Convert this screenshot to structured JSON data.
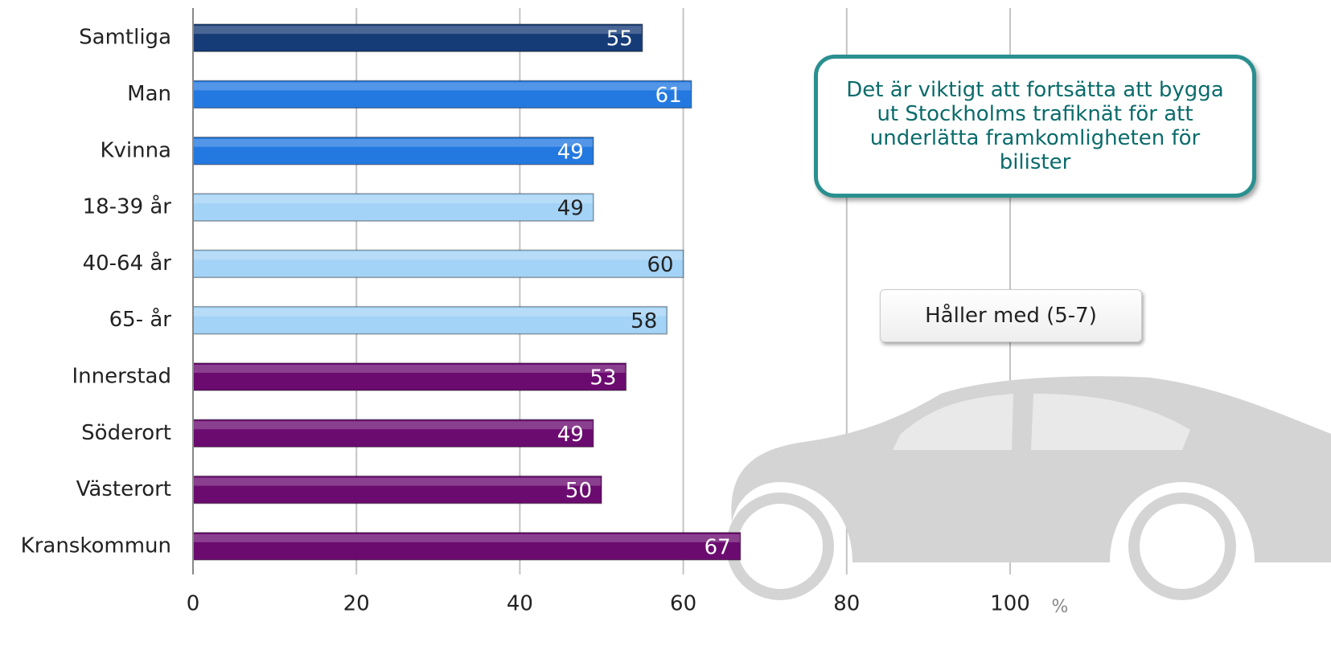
{
  "chart_data": {
    "type": "bar",
    "orientation": "horizontal",
    "categories": [
      "Samtliga",
      "Man",
      "Kvinna",
      "18-39 år",
      "40-64 år",
      "65- år",
      "Innerstad",
      "Söderort",
      "Västerort",
      "Kranskommun"
    ],
    "series": [
      {
        "name": "Håller med (5-7)",
        "colors": [
          "#163c78",
          "#2379e0",
          "#2379e0",
          "#a3d3f6",
          "#a3d3f6",
          "#a3d3f6",
          "#6b0b70",
          "#6b0b70",
          "#6b0b70",
          "#6b0b70"
        ],
        "values": [
          55,
          61,
          49,
          49,
          60,
          58,
          53,
          49,
          50,
          67
        ]
      }
    ],
    "xlim": [
      0,
      100
    ],
    "xticks": [
      0,
      20,
      40,
      60,
      80,
      100
    ],
    "x_unit": "%",
    "grid": true,
    "annotation": "Det är viktigt att fortsätta att bygga ut Stockholms trafiknät för att underlätta framkomligheten för bilister"
  }
}
